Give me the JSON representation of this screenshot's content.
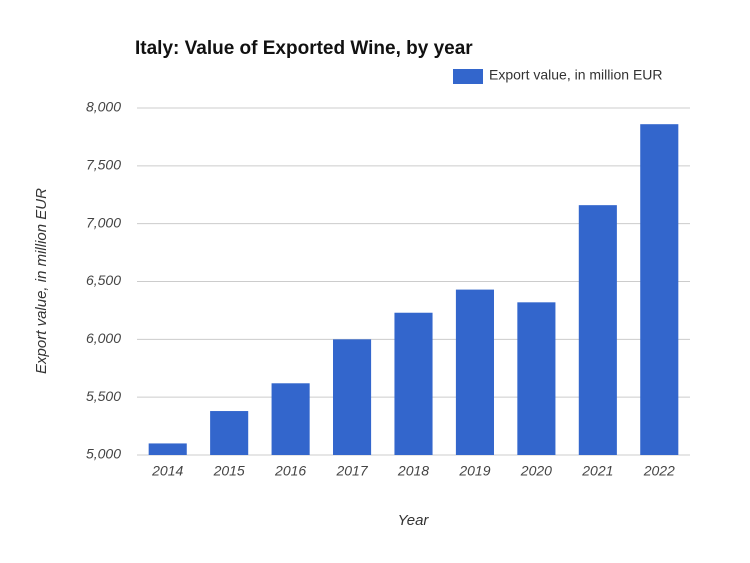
{
  "chart_data": {
    "type": "bar",
    "title": "Italy: Value of Exported Wine, by year",
    "x_label": "Year",
    "y_label": "Export value, in million EUR",
    "categories": [
      "2014",
      "2015",
      "2016",
      "2017",
      "2018",
      "2019",
      "2020",
      "2021",
      "2022"
    ],
    "series": [
      {
        "name": "Export value, in million EUR",
        "color": "#3366cc",
        "values": [
          5100,
          5380,
          5620,
          6000,
          6230,
          6430,
          6320,
          7160,
          7860
        ]
      }
    ],
    "ylim": [
      5000,
      8000
    ],
    "yticks": [
      {
        "value": 5000,
        "label": "5,000"
      },
      {
        "value": 5500,
        "label": "5,500"
      },
      {
        "value": 6000,
        "label": "6,000"
      },
      {
        "value": 6500,
        "label": "6,500"
      },
      {
        "value": 7000,
        "label": "7,000"
      },
      {
        "value": 7500,
        "label": "7,500"
      },
      {
        "value": 8000,
        "label": "8,000"
      }
    ],
    "grid": true
  }
}
